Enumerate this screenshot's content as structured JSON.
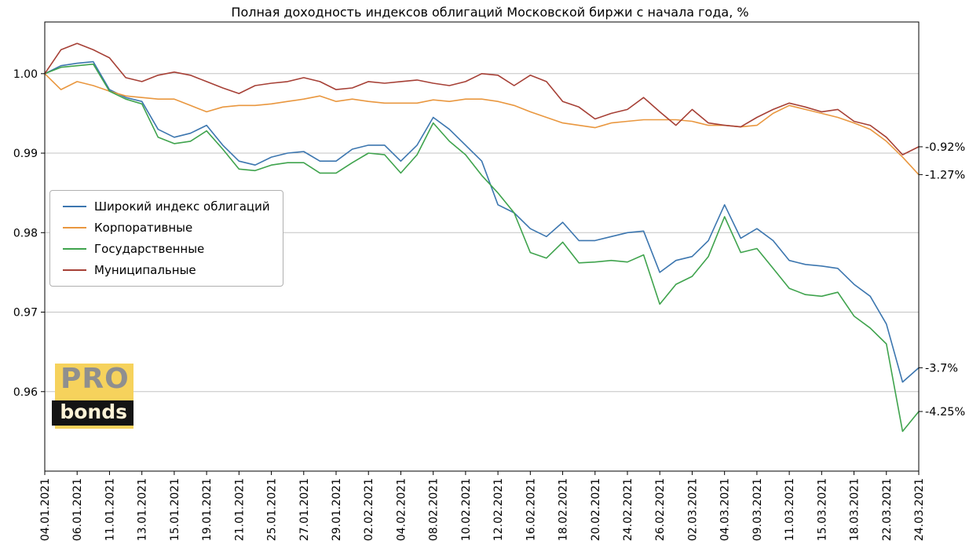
{
  "title": "Полная доходность индексов облигаций Московской биржи с начала года, %",
  "logo": {
    "line1": "PRO",
    "line2": "bonds"
  },
  "chart_data": {
    "type": "line",
    "title": "Полная доходность индексов облигаций Московской биржи с начала года, %",
    "xlabel": "",
    "ylabel": "",
    "grid": "horizontal",
    "legend_position": "center-left",
    "ylim": [
      0.95,
      1.0065
    ],
    "y_ticks": [
      0.96,
      0.97,
      0.98,
      0.99,
      1.0
    ],
    "tick_every": 2,
    "x_tick_labels": [
      "04.01.2021",
      "06.01.2021",
      "11.01.2021",
      "13.01.2021",
      "15.01.2021",
      "19.01.2021",
      "21.01.2021",
      "25.01.2021",
      "27.01.2021",
      "29.01.2021",
      "02.02.2021",
      "04.02.2021",
      "08.02.2021",
      "10.02.2021",
      "12.02.2021",
      "16.02.2021",
      "18.02.2021",
      "20.02.2021",
      "24.02.2021",
      "26.02.2021",
      "02.03.2021",
      "04.03.2021",
      "09.03.2021",
      "11.03.2021",
      "15.03.2021",
      "18.03.2021",
      "22.03.2021",
      "24.03.2021"
    ],
    "series": [
      {
        "name": "Широкий индекс облигаций",
        "color": "#3c76af",
        "final_label": "-3.7%",
        "values": [
          1.0,
          1.001,
          1.0013,
          1.0015,
          0.998,
          0.997,
          0.9965,
          0.993,
          0.992,
          0.9925,
          0.9935,
          0.991,
          0.989,
          0.9885,
          0.9895,
          0.99,
          0.9902,
          0.989,
          0.989,
          0.9905,
          0.991,
          0.991,
          0.989,
          0.991,
          0.9945,
          0.993,
          0.991,
          0.989,
          0.9835,
          0.9825,
          0.9805,
          0.9795,
          0.9813,
          0.979,
          0.979,
          0.9795,
          0.98,
          0.9802,
          0.975,
          0.9765,
          0.977,
          0.979,
          0.9835,
          0.9793,
          0.9805,
          0.979,
          0.9765,
          0.976,
          0.9758,
          0.9755,
          0.9735,
          0.972,
          0.9685,
          0.9612,
          0.963
        ]
      },
      {
        "name": "Корпоративные",
        "color": "#e9973f",
        "final_label": "-1.27%",
        "values": [
          1.0,
          0.998,
          0.999,
          0.9985,
          0.9978,
          0.9972,
          0.997,
          0.9968,
          0.9968,
          0.996,
          0.9952,
          0.9958,
          0.996,
          0.996,
          0.9962,
          0.9965,
          0.9968,
          0.9972,
          0.9965,
          0.9968,
          0.9965,
          0.9963,
          0.9963,
          0.9963,
          0.9967,
          0.9965,
          0.9968,
          0.9968,
          0.9965,
          0.996,
          0.9952,
          0.9945,
          0.9938,
          0.9935,
          0.9932,
          0.9938,
          0.994,
          0.9942,
          0.9942,
          0.9942,
          0.994,
          0.9935,
          0.9935,
          0.9933,
          0.9935,
          0.995,
          0.996,
          0.9955,
          0.995,
          0.9945,
          0.9938,
          0.993,
          0.9915,
          0.9895,
          0.9873
        ]
      },
      {
        "name": "Государственные",
        "color": "#3fa34d",
        "final_label": "-4.25%",
        "values": [
          1.0,
          1.0008,
          1.001,
          1.0012,
          0.9978,
          0.9968,
          0.9962,
          0.992,
          0.9912,
          0.9915,
          0.9928,
          0.9905,
          0.988,
          0.9878,
          0.9885,
          0.9888,
          0.9888,
          0.9875,
          0.9875,
          0.9888,
          0.99,
          0.9898,
          0.9875,
          0.9898,
          0.9938,
          0.9915,
          0.9898,
          0.9872,
          0.985,
          0.9825,
          0.9775,
          0.9768,
          0.9788,
          0.9762,
          0.9763,
          0.9765,
          0.9763,
          0.9772,
          0.971,
          0.9735,
          0.9745,
          0.977,
          0.982,
          0.9775,
          0.978,
          0.9755,
          0.973,
          0.9722,
          0.972,
          0.9725,
          0.9695,
          0.968,
          0.966,
          0.955,
          0.9575
        ]
      },
      {
        "name": "Муниципальные",
        "color": "#a64036",
        "final_label": "-0.92%",
        "values": [
          1.0,
          1.003,
          1.0038,
          1.003,
          1.002,
          0.9995,
          0.999,
          0.9998,
          1.0002,
          0.9998,
          0.999,
          0.9982,
          0.9975,
          0.9985,
          0.9988,
          0.999,
          0.9995,
          0.999,
          0.998,
          0.9982,
          0.999,
          0.9988,
          0.999,
          0.9992,
          0.9988,
          0.9985,
          0.999,
          1.0,
          0.9998,
          0.9985,
          0.9998,
          0.999,
          0.9965,
          0.9958,
          0.9943,
          0.995,
          0.9955,
          0.997,
          0.9952,
          0.9935,
          0.9955,
          0.9938,
          0.9935,
          0.9933,
          0.9945,
          0.9955,
          0.9963,
          0.9958,
          0.9952,
          0.9955,
          0.994,
          0.9935,
          0.992,
          0.9898,
          0.9908
        ]
      }
    ],
    "right_annotations": [
      {
        "label": "-0.92%",
        "value": 0.9908
      },
      {
        "label": "-1.27%",
        "value": 0.9873
      },
      {
        "label": "-3.7%",
        "value": 0.963
      },
      {
        "label": "-4.25%",
        "value": 0.9575
      }
    ]
  }
}
